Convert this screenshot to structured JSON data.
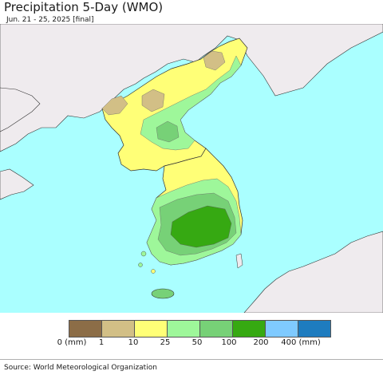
{
  "header": {
    "title": "Precipitation 5-Day (WMO)",
    "subtitle": "Jun. 21 - 25, 2025 [final]"
  },
  "legend": {
    "colors": [
      "#8c6d47",
      "#d2bf86",
      "#ffff77",
      "#9ef79a",
      "#77d177",
      "#36a912",
      "#7fcaff",
      "#1e7cbf"
    ],
    "labels": [
      "0 (mm)",
      "1",
      "10",
      "25",
      "50",
      "100",
      "200",
      "400 (mm)"
    ]
  },
  "map": {
    "ocean_color": "#aaffff",
    "land_color": "#efebee"
  },
  "footer": {
    "source": "Source: World Meteorological Organization"
  }
}
